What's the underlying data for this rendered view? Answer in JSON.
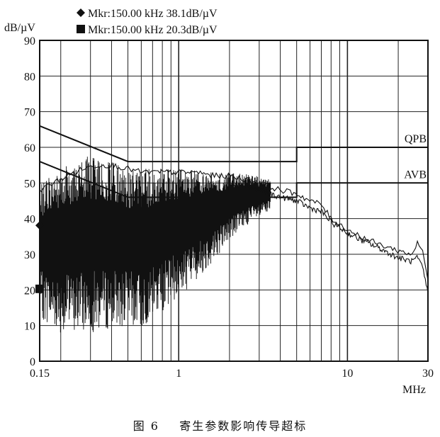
{
  "markers": [
    {
      "symbol": "diamond",
      "label": "Mkr:150.00  kHz   38.1dB/µV"
    },
    {
      "symbol": "square",
      "label": "Mkr:150.00  kHz   20.3dB/µV"
    }
  ],
  "caption": "图 6    寄生参数影响传导超标",
  "chart_data": {
    "type": "line",
    "title": "",
    "ylabel": "dB/µV",
    "xlabel": "MHz",
    "xscale": "log",
    "xlim": [
      0.15,
      30
    ],
    "ylim": [
      0,
      90
    ],
    "y_ticks": [
      "0",
      "10",
      "20",
      "30",
      "40",
      "50",
      "60",
      "70",
      "80",
      "90"
    ],
    "x_tick_values": [
      0.15,
      1,
      10,
      30
    ],
    "x_tick_labels": [
      "0.15",
      "1",
      "10",
      "30"
    ],
    "limit_lines": [
      {
        "name": "QPB",
        "points": [
          [
            0.15,
            66
          ],
          [
            0.5,
            56
          ],
          [
            5,
            56
          ],
          [
            5,
            60
          ],
          [
            30,
            60
          ]
        ]
      },
      {
        "name": "AVB",
        "points": [
          [
            0.15,
            56
          ],
          [
            0.5,
            46
          ],
          [
            5,
            46
          ],
          [
            5,
            50
          ],
          [
            30,
            50
          ]
        ]
      }
    ],
    "series": [
      {
        "kind": "peak-envelope",
        "x": [
          0.15,
          0.18,
          0.22,
          0.27,
          0.33,
          0.4,
          0.5,
          0.6,
          0.8,
          1,
          1.3,
          1.6,
          2,
          2.5,
          3,
          4,
          5,
          6,
          7,
          8,
          10,
          12,
          15,
          20,
          24,
          26,
          28,
          30
        ],
        "y": [
          48,
          50,
          52,
          54,
          55,
          55,
          54,
          53,
          53,
          53,
          53,
          52,
          52,
          51,
          50,
          48,
          47,
          45,
          44,
          40,
          37,
          35,
          33,
          31,
          30,
          33,
          31,
          22
        ]
      },
      {
        "kind": "average-trace",
        "x": [
          2,
          2.5,
          3,
          4,
          5,
          6,
          7,
          8,
          10,
          12,
          15,
          20,
          24,
          26,
          28,
          30
        ],
        "y": [
          50,
          49,
          48,
          46,
          45,
          43,
          42,
          39,
          36,
          34,
          32,
          29,
          28,
          29,
          26,
          19
        ]
      }
    ],
    "noise_band": {
      "x_range": [
        0.15,
        3.5
      ],
      "max": [
        [
          0.15,
          50
        ],
        [
          0.2,
          54
        ],
        [
          0.25,
          56
        ],
        [
          0.3,
          58
        ],
        [
          0.4,
          56
        ],
        [
          0.5,
          54
        ],
        [
          0.8,
          54
        ],
        [
          1,
          54
        ],
        [
          1.5,
          53
        ],
        [
          2,
          53
        ],
        [
          3,
          52
        ],
        [
          3.5,
          51
        ]
      ],
      "min": [
        [
          0.15,
          12
        ],
        [
          0.2,
          8
        ],
        [
          0.3,
          8
        ],
        [
          0.5,
          10
        ],
        [
          0.6,
          9
        ],
        [
          0.8,
          14
        ],
        [
          1,
          18
        ],
        [
          1.3,
          23
        ],
        [
          1.6,
          28
        ],
        [
          2,
          34
        ],
        [
          2.5,
          38
        ],
        [
          3,
          40
        ],
        [
          3.5,
          42
        ]
      ]
    },
    "marker_points": [
      {
        "symbol": "diamond",
        "x": 0.15,
        "y": 38.1
      },
      {
        "symbol": "square",
        "x": 0.15,
        "y": 20.3
      }
    ],
    "grid": true
  }
}
